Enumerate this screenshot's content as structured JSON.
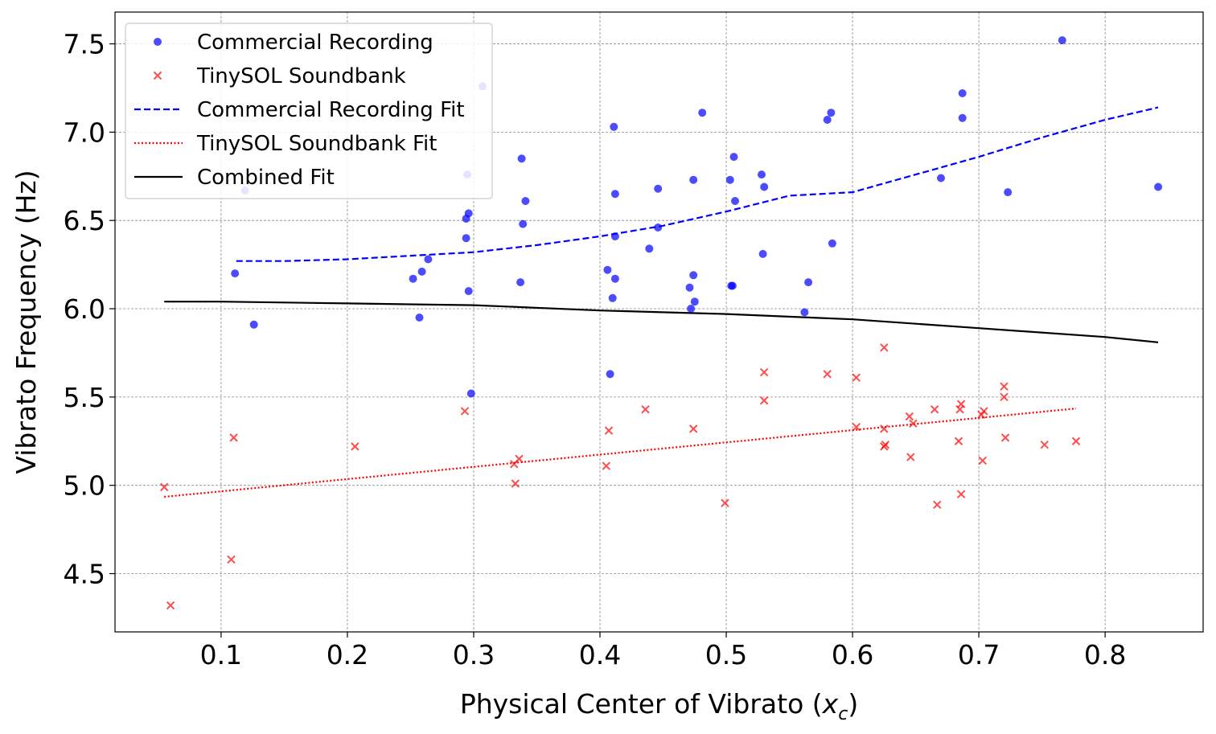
{
  "chart_data": {
    "type": "scatter",
    "title": "",
    "xlabel": "Physical Center of Vibrato",
    "xlabel_var": "x",
    "xlabel_sub": "c",
    "ylabel": "Vibrato Frequency (Hz)",
    "xlim": [
      0.016,
      0.8776
    ],
    "ylim": [
      4.17,
      7.68
    ],
    "xticks": [
      0.1,
      0.2,
      0.3,
      0.4,
      0.5,
      0.6,
      0.7,
      0.8
    ],
    "xtick_labels": [
      "0.1",
      "0.2",
      "0.3",
      "0.4",
      "0.5",
      "0.6",
      "0.7",
      "0.8"
    ],
    "yticks": [
      4.5,
      5.0,
      5.5,
      6.0,
      6.5,
      7.0,
      7.5
    ],
    "ytick_labels": [
      "4.5",
      "5.0",
      "5.5",
      "6.0",
      "6.5",
      "7.0",
      "7.5"
    ],
    "grid": true,
    "legend_position": "top-left",
    "colors": {
      "commercial": "#0000ff",
      "tinysol": "#ff0000",
      "combined": "#000000",
      "grid": "#888888"
    },
    "series": [
      {
        "name": "Commercial Recording",
        "kind": "scatter",
        "marker": "circle",
        "color": "#0000ff",
        "points": [
          [
            0.111,
            6.2
          ],
          [
            0.119,
            6.67
          ],
          [
            0.126,
            5.91
          ],
          [
            0.252,
            6.17
          ],
          [
            0.257,
            5.95
          ],
          [
            0.259,
            6.21
          ],
          [
            0.264,
            6.28
          ],
          [
            0.294,
            6.51
          ],
          [
            0.294,
            6.4
          ],
          [
            0.295,
            6.76
          ],
          [
            0.296,
            6.54
          ],
          [
            0.296,
            6.1
          ],
          [
            0.298,
            5.52
          ],
          [
            0.307,
            7.26
          ],
          [
            0.337,
            6.15
          ],
          [
            0.338,
            6.85
          ],
          [
            0.339,
            6.48
          ],
          [
            0.341,
            6.61
          ],
          [
            0.406,
            6.22
          ],
          [
            0.408,
            5.63
          ],
          [
            0.41,
            6.06
          ],
          [
            0.411,
            7.03
          ],
          [
            0.412,
            6.65
          ],
          [
            0.412,
            6.41
          ],
          [
            0.412,
            6.17
          ],
          [
            0.439,
            6.34
          ],
          [
            0.446,
            6.68
          ],
          [
            0.446,
            6.46
          ],
          [
            0.471,
            6.12
          ],
          [
            0.472,
            6.0
          ],
          [
            0.474,
            6.73
          ],
          [
            0.474,
            6.19
          ],
          [
            0.475,
            6.04
          ],
          [
            0.481,
            7.11
          ],
          [
            0.503,
            6.73
          ],
          [
            0.504,
            6.13
          ],
          [
            0.505,
            6.13
          ],
          [
            0.506,
            6.86
          ],
          [
            0.507,
            6.61
          ],
          [
            0.528,
            6.76
          ],
          [
            0.529,
            6.31
          ],
          [
            0.53,
            6.69
          ],
          [
            0.562,
            5.98
          ],
          [
            0.565,
            6.15
          ],
          [
            0.58,
            7.07
          ],
          [
            0.583,
            7.11
          ],
          [
            0.584,
            6.37
          ],
          [
            0.67,
            6.74
          ],
          [
            0.687,
            7.08
          ],
          [
            0.687,
            7.22
          ],
          [
            0.723,
            6.66
          ],
          [
            0.766,
            7.52
          ],
          [
            0.842,
            6.69
          ]
        ]
      },
      {
        "name": "TinySOL Soundbank",
        "kind": "scatter",
        "marker": "x",
        "color": "#ff0000",
        "points": [
          [
            0.055,
            4.99
          ],
          [
            0.06,
            4.32
          ],
          [
            0.108,
            4.58
          ],
          [
            0.11,
            5.27
          ],
          [
            0.206,
            5.22
          ],
          [
            0.293,
            5.42
          ],
          [
            0.332,
            5.12
          ],
          [
            0.333,
            5.01
          ],
          [
            0.336,
            5.15
          ],
          [
            0.405,
            5.11
          ],
          [
            0.407,
            5.31
          ],
          [
            0.436,
            5.43
          ],
          [
            0.474,
            5.32
          ],
          [
            0.499,
            4.9
          ],
          [
            0.53,
            5.64
          ],
          [
            0.53,
            5.48
          ],
          [
            0.58,
            5.63
          ],
          [
            0.603,
            5.61
          ],
          [
            0.603,
            5.33
          ],
          [
            0.625,
            5.78
          ],
          [
            0.625,
            5.32
          ],
          [
            0.625,
            5.22
          ],
          [
            0.626,
            5.23
          ],
          [
            0.645,
            5.39
          ],
          [
            0.646,
            5.16
          ],
          [
            0.648,
            5.35
          ],
          [
            0.665,
            5.43
          ],
          [
            0.667,
            4.89
          ],
          [
            0.684,
            5.25
          ],
          [
            0.685,
            5.43
          ],
          [
            0.686,
            4.95
          ],
          [
            0.686,
            5.46
          ],
          [
            0.702,
            5.4
          ],
          [
            0.703,
            5.14
          ],
          [
            0.704,
            5.42
          ],
          [
            0.72,
            5.56
          ],
          [
            0.72,
            5.5
          ],
          [
            0.721,
            5.27
          ],
          [
            0.752,
            5.23
          ],
          [
            0.777,
            5.25
          ]
        ]
      },
      {
        "name": "Commercial Recording Fit",
        "kind": "line",
        "style": "dashed",
        "color": "#0000ff",
        "points": [
          [
            0.112,
            6.27
          ],
          [
            0.15,
            6.27
          ],
          [
            0.2,
            6.28
          ],
          [
            0.25,
            6.3
          ],
          [
            0.3,
            6.32
          ],
          [
            0.35,
            6.36
          ],
          [
            0.4,
            6.41
          ],
          [
            0.45,
            6.47
          ],
          [
            0.5,
            6.55
          ],
          [
            0.55,
            6.64
          ],
          [
            0.6,
            6.66
          ],
          [
            0.65,
            6.76
          ],
          [
            0.7,
            6.86
          ],
          [
            0.75,
            6.97
          ],
          [
            0.8,
            7.07
          ],
          [
            0.842,
            7.14
          ]
        ]
      },
      {
        "name": "TinySOL Soundbank Fit",
        "kind": "line",
        "style": "dotted",
        "color": "#ff0000",
        "points": [
          [
            0.055,
            4.935
          ],
          [
            0.777,
            5.435
          ]
        ]
      },
      {
        "name": "Combined Fit",
        "kind": "line",
        "style": "solid",
        "color": "#000000",
        "points": [
          [
            0.055,
            6.04
          ],
          [
            0.1,
            6.04
          ],
          [
            0.2,
            6.03
          ],
          [
            0.3,
            6.02
          ],
          [
            0.4,
            5.99
          ],
          [
            0.5,
            5.97
          ],
          [
            0.6,
            5.94
          ],
          [
            0.7,
            5.89
          ],
          [
            0.8,
            5.84
          ],
          [
            0.842,
            5.81
          ]
        ]
      }
    ]
  }
}
